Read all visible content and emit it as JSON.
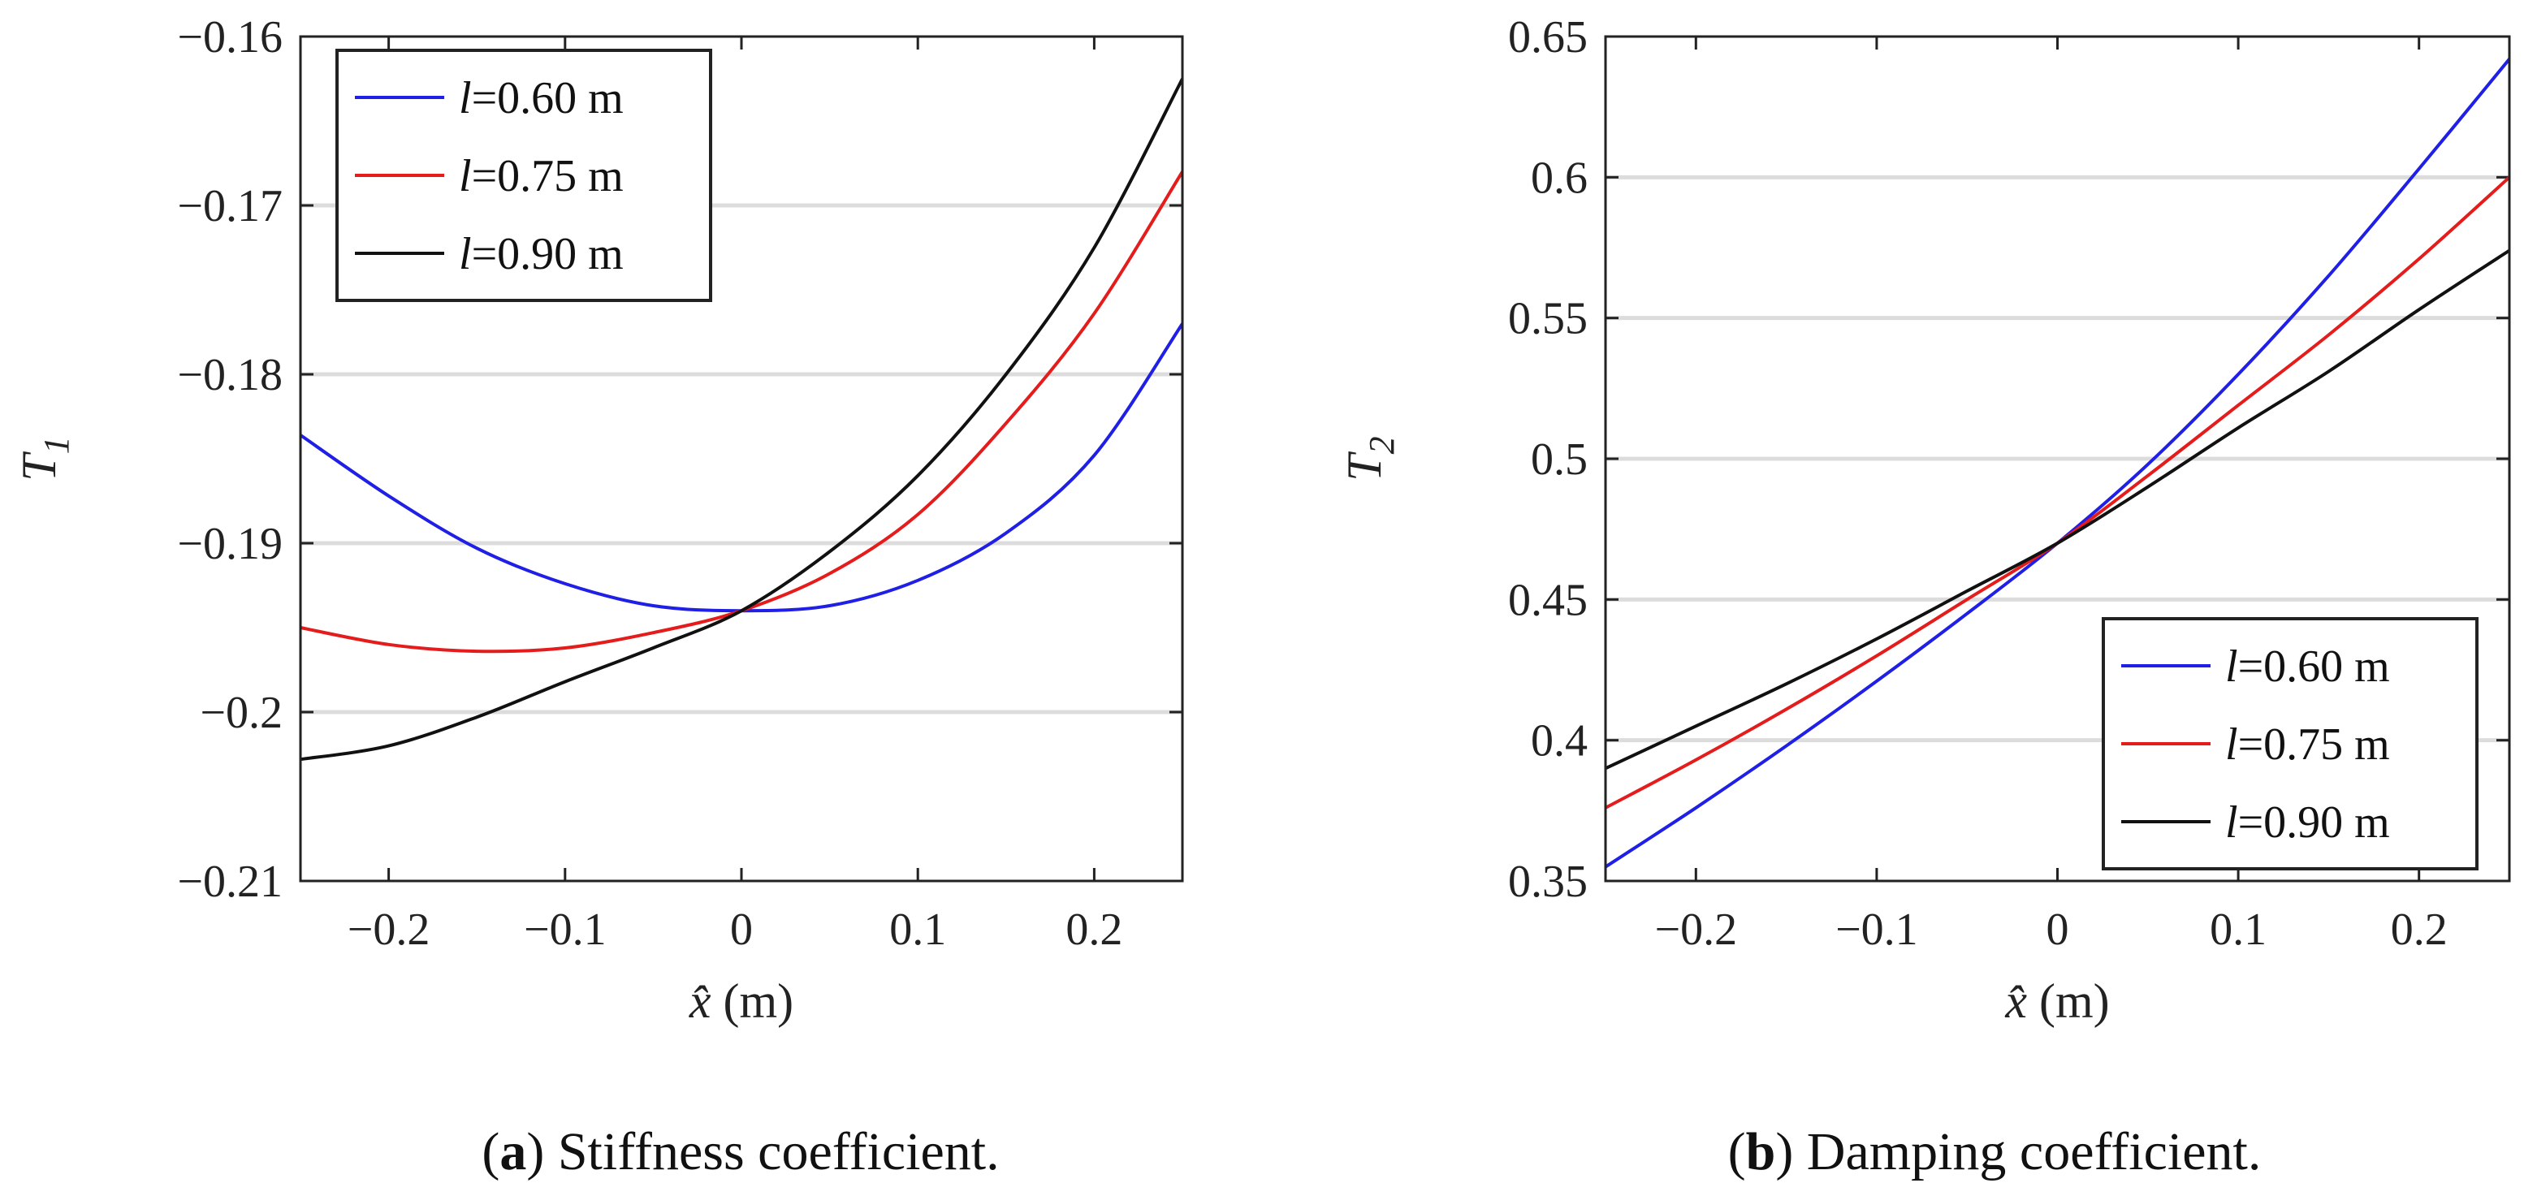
{
  "chart_data": [
    {
      "type": "line",
      "panel": "a",
      "caption_label": "a",
      "caption_text": "Stiffness coefficient.",
      "ylabel": "T",
      "ylabel_sub": "1",
      "xlabel": "x̂",
      "xlabel_unit": "(m)",
      "xlim": [
        -0.25,
        0.25
      ],
      "ylim": [
        -0.21,
        -0.16
      ],
      "xticks": [
        -0.2,
        -0.1,
        0,
        0.1,
        0.2
      ],
      "xtick_labels": [
        "−0.2",
        "−0.1",
        "0",
        "0.1",
        "0.2"
      ],
      "yticks": [
        -0.21,
        -0.2,
        -0.19,
        -0.18,
        -0.17,
        -0.16
      ],
      "ytick_labels": [
        "−0.21",
        "−0.2",
        "−0.19",
        "−0.18",
        "−0.17",
        "−0.16"
      ],
      "grid": "horizontal",
      "legend_position": "top-left",
      "x": [
        -0.25,
        -0.2,
        -0.15,
        -0.1,
        -0.05,
        0,
        0.05,
        0.1,
        0.15,
        0.2,
        0.25
      ],
      "series": [
        {
          "name": "l=0.60 m",
          "label_var": "l",
          "label_rest": "=0.60 m",
          "color": "#1f1fe6",
          "values": [
            -0.1836,
            -0.1872,
            -0.1903,
            -0.1924,
            -0.1937,
            -0.194,
            -0.1937,
            -0.1922,
            -0.1894,
            -0.1848,
            -0.177
          ]
        },
        {
          "name": "l=0.75 m",
          "label_var": "l",
          "label_rest": "=0.75 m",
          "color": "#e51c1c",
          "values": [
            -0.195,
            -0.196,
            -0.1964,
            -0.1962,
            -0.1953,
            -0.194,
            -0.1918,
            -0.1883,
            -0.1829,
            -0.1764,
            -0.168
          ]
        },
        {
          "name": "l=0.90 m",
          "label_var": "l",
          "label_rest": "=0.90 m",
          "color": "#111111",
          "values": [
            -0.2028,
            -0.202,
            -0.2003,
            -0.1982,
            -0.1962,
            -0.194,
            -0.1905,
            -0.186,
            -0.18,
            -0.1725,
            -0.1625
          ]
        }
      ]
    },
    {
      "type": "line",
      "panel": "b",
      "caption_label": "b",
      "caption_text": "Damping coefficient.",
      "ylabel": "T",
      "ylabel_sub": "2",
      "xlabel": "x̂",
      "xlabel_unit": "(m)",
      "xlim": [
        -0.25,
        0.25
      ],
      "ylim": [
        0.35,
        0.65
      ],
      "xticks": [
        -0.2,
        -0.1,
        0,
        0.1,
        0.2
      ],
      "xtick_labels": [
        "−0.2",
        "−0.1",
        "0",
        "0.1",
        "0.2"
      ],
      "yticks": [
        0.35,
        0.4,
        0.45,
        0.5,
        0.55,
        0.6,
        0.65
      ],
      "ytick_labels": [
        "0.35",
        "0.4",
        "0.45",
        "0.5",
        "0.55",
        "0.6",
        "0.65"
      ],
      "grid": "horizontal",
      "legend_position": "bottom-right",
      "x": [
        -0.25,
        -0.2,
        -0.15,
        -0.1,
        -0.05,
        0,
        0.05,
        0.1,
        0.15,
        0.2,
        0.25
      ],
      "series": [
        {
          "name": "l=0.60 m",
          "label_var": "l",
          "label_rest": "=0.60 m",
          "color": "#1f1fe6",
          "values": [
            0.355,
            0.376,
            0.398,
            0.421,
            0.445,
            0.47,
            0.498,
            0.53,
            0.565,
            0.603,
            0.642
          ]
        },
        {
          "name": "l=0.75 m",
          "label_var": "l",
          "label_rest": "=0.75 m",
          "color": "#e51c1c",
          "values": [
            0.376,
            0.393,
            0.411,
            0.43,
            0.45,
            0.47,
            0.494,
            0.519,
            0.544,
            0.571,
            0.6
          ]
        },
        {
          "name": "l=0.90 m",
          "label_var": "l",
          "label_rest": "=0.90 m",
          "color": "#111111",
          "values": [
            0.39,
            0.405,
            0.42,
            0.436,
            0.453,
            0.47,
            0.49,
            0.511,
            0.531,
            0.553,
            0.574
          ]
        }
      ]
    }
  ]
}
